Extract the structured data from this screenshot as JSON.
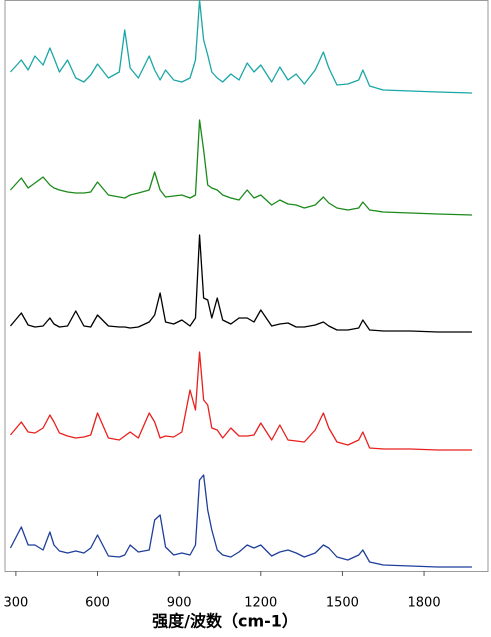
{
  "chart_data": {
    "type": "line",
    "xlabel": "强度/波数（cm-1）",
    "x": [
      280,
      320,
      345,
      370,
      400,
      425,
      440,
      460,
      490,
      520,
      550,
      575,
      600,
      640,
      680,
      700,
      720,
      750,
      790,
      810,
      830,
      850,
      880,
      910,
      940,
      960,
      975,
      990,
      1005,
      1020,
      1040,
      1060,
      1090,
      1120,
      1150,
      1175,
      1200,
      1240,
      1270,
      1300,
      1330,
      1360,
      1400,
      1430,
      1450,
      1480,
      1520,
      1560,
      1575,
      1600,
      1650,
      1750,
      1850,
      1976
    ],
    "series": [
      {
        "color": "#1aa6a6",
        "values": [
          499,
          511,
          501,
          515,
          506,
          523,
          513,
          499,
          511,
          493,
          489,
          496,
          507,
          493,
          499,
          541,
          503,
          493,
          515,
          501,
          491,
          501,
          491,
          489,
          493,
          511,
          571,
          531,
          516,
          499,
          493,
          489,
          497,
          491,
          508,
          499,
          506,
          489,
          504,
          491,
          497,
          487,
          501,
          519,
          503,
          486,
          487,
          491,
          501,
          485,
          481,
          480,
          479,
          478
        ]
      },
      {
        "color": "#1a8a1a",
        "values": [
          381,
          393,
          383,
          388,
          394,
          386,
          383,
          381,
          379,
          378,
          378,
          379,
          389,
          376,
          374,
          373,
          376,
          378,
          381,
          399,
          381,
          374,
          375,
          376,
          373,
          376,
          451,
          421,
          386,
          383,
          381,
          376,
          373,
          371,
          381,
          373,
          376,
          366,
          371,
          367,
          366,
          363,
          366,
          374,
          368,
          363,
          361,
          363,
          369,
          361,
          359,
          358,
          357,
          356
        ]
      },
      {
        "color": "#000000",
        "values": [
          245,
          258,
          246,
          244,
          245,
          253,
          247,
          244,
          245,
          260,
          245,
          244,
          256,
          245,
          244,
          244,
          243,
          244,
          249,
          256,
          278,
          249,
          247,
          251,
          245,
          253,
          336,
          273,
          271,
          253,
          273,
          251,
          247,
          253,
          253,
          249,
          261,
          245,
          247,
          248,
          244,
          244,
          246,
          249,
          245,
          241,
          241,
          243,
          251,
          241,
          240,
          240,
          239,
          239
        ]
      },
      {
        "color": "#e8201e",
        "values": [
          136,
          149,
          139,
          138,
          143,
          156,
          149,
          138,
          135,
          133,
          134,
          136,
          158,
          133,
          131,
          135,
          139,
          133,
          158,
          149,
          133,
          135,
          134,
          139,
          181,
          161,
          219,
          171,
          166,
          143,
          141,
          133,
          143,
          135,
          135,
          136,
          148,
          131,
          146,
          131,
          130,
          129,
          141,
          158,
          143,
          129,
          126,
          131,
          139,
          123,
          122,
          122,
          121,
          121
        ]
      },
      {
        "color": "#1f3f9a",
        "values": [
          23,
          44,
          26,
          26,
          21,
          39,
          26,
          20,
          18,
          20,
          18,
          23,
          36,
          15,
          14,
          16,
          26,
          19,
          21,
          51,
          56,
          24,
          16,
          18,
          16,
          26,
          91,
          96,
          61,
          41,
          21,
          16,
          14,
          19,
          26,
          23,
          26,
          15,
          19,
          21,
          18,
          14,
          18,
          26,
          23,
          14,
          11,
          16,
          21,
          9,
          6,
          5,
          4,
          4
        ]
      }
    ],
    "xlim": [
      260,
      2035
    ],
    "xticks": [
      300,
      600,
      900,
      1200,
      1500,
      1800
    ],
    "ylim": [
      0,
      571
    ]
  }
}
